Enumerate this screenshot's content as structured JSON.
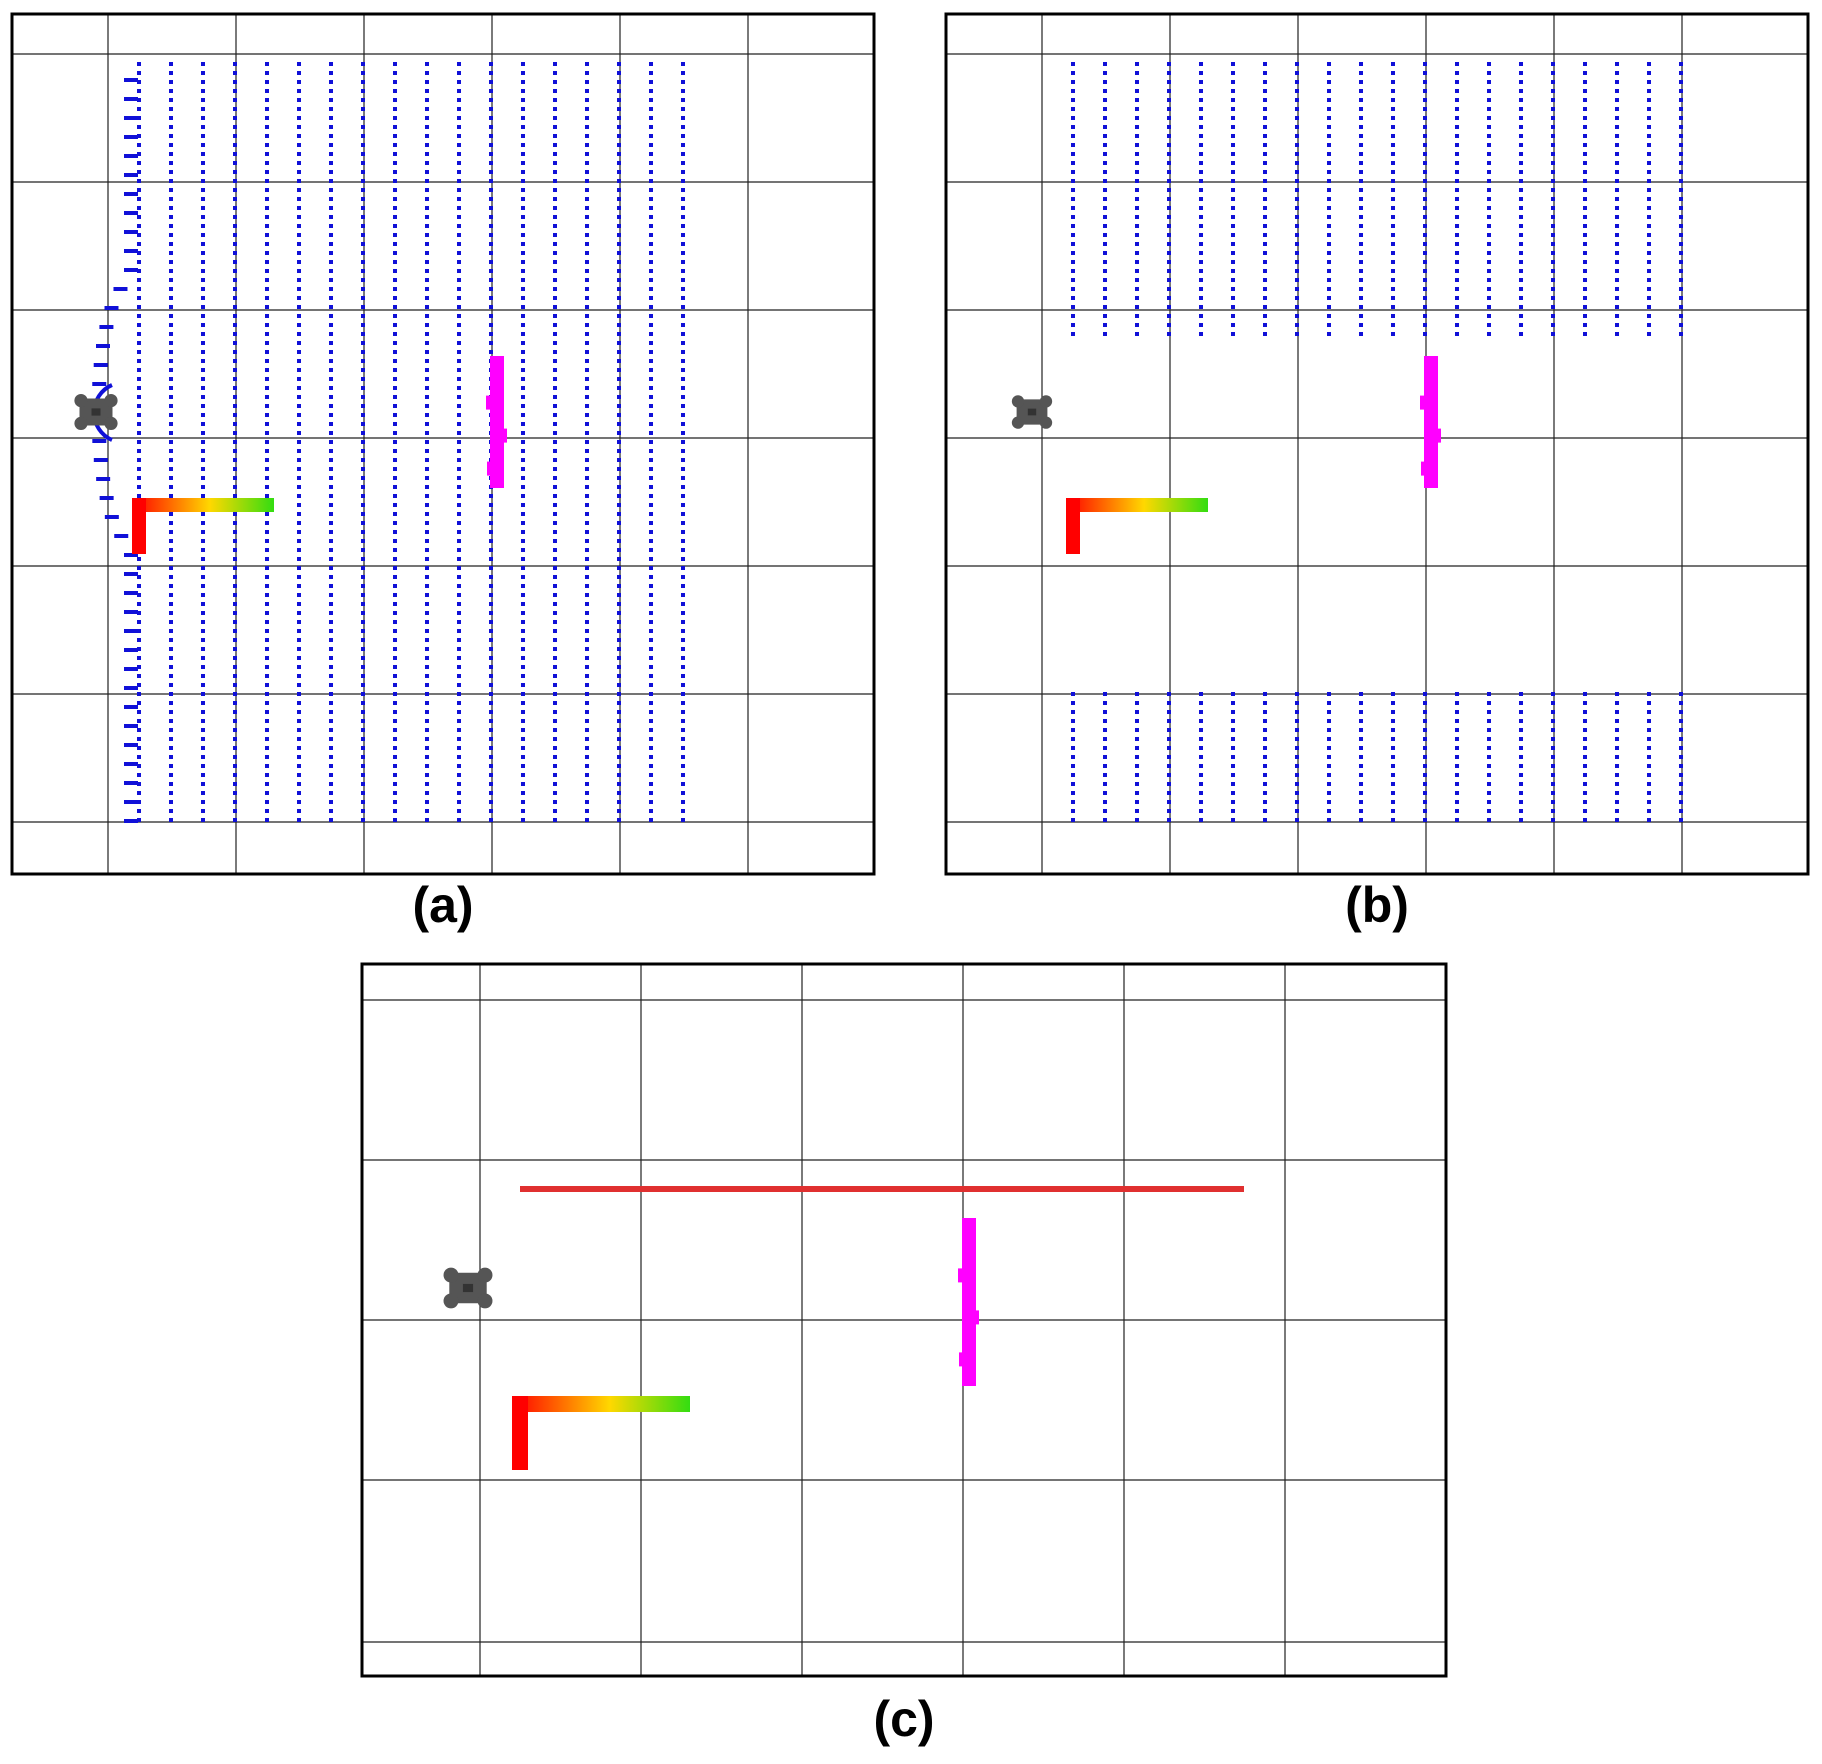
{
  "figure": {
    "panels": [
      {
        "id": "a",
        "label": "(a)",
        "scene": "full-grid"
      },
      {
        "id": "b",
        "label": "(b)",
        "scene": "split-grid"
      },
      {
        "id": "c",
        "label": "(c)",
        "scene": "line-path"
      }
    ]
  },
  "colors": {
    "frame": "#000000",
    "grid": "#222222",
    "points": "#1010d8",
    "obstacle": "#ff00ff",
    "path_line": "#e03030",
    "gradient_start": "#ff0000",
    "gradient_mid": "#ffd800",
    "gradient_end": "#33dd11",
    "robot": "#555555"
  },
  "icons": {
    "robot": "robot-icon",
    "frame_axes": "gradient-axis-marker"
  }
}
